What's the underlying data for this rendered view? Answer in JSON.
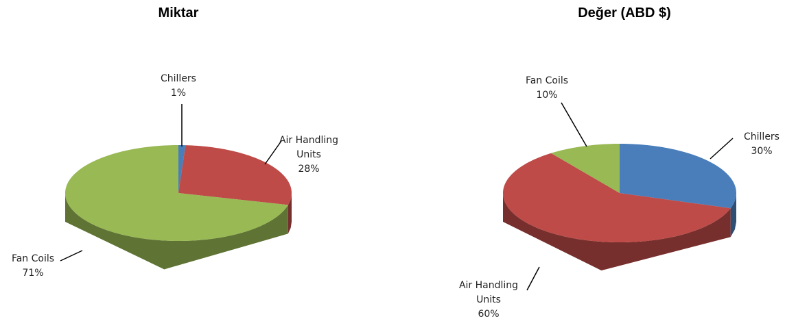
{
  "chart_data": [
    {
      "type": "pie",
      "title": "Miktar",
      "categories": [
        "Chillers",
        "Air Handling Units",
        "Fan Coils"
      ],
      "values": [
        1,
        28,
        71
      ],
      "value_labels": [
        "1%",
        "28%",
        "71%"
      ],
      "colors": [
        "#4a7ebb",
        "#be4b48",
        "#98b954"
      ]
    },
    {
      "type": "pie",
      "title": "Değer (ABD $)",
      "categories": [
        "Chillers",
        "Air Handling Units",
        "Fan Coils"
      ],
      "values": [
        30,
        60,
        10
      ],
      "value_labels": [
        "30%",
        "60%",
        "10%"
      ],
      "colors": [
        "#4a7ebb",
        "#be4b48",
        "#98b954"
      ]
    }
  ]
}
